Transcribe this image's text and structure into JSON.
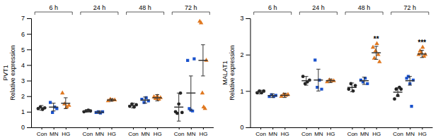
{
  "chart_data": [
    {
      "type": "dot",
      "title": "PVT1",
      "ylabel": "Relative expression",
      "ylim": [
        0,
        7
      ],
      "yticks": [
        0,
        1,
        2,
        3,
        4,
        5,
        6,
        7
      ],
      "grid": false,
      "categories": [
        "6 h",
        "24 h",
        "48 h",
        "72 h"
      ],
      "series": [
        {
          "name": "Con",
          "color": "#222222",
          "marker": "circle",
          "values": [
            1.25,
            1.05,
            1.4,
            1.3
          ],
          "errors": [
            0.15,
            0.07,
            0.15,
            0.9
          ],
          "points": [
            [
              1.2,
              1.3,
              1.15,
              1.25
            ],
            [
              1.0,
              1.05,
              1.1,
              1.05
            ],
            [
              1.35,
              1.5,
              1.3,
              1.45
            ],
            [
              1.0,
              0.9,
              1.5,
              2.2,
              0.95
            ]
          ]
        },
        {
          "name": "MN",
          "color": "#1a52cc",
          "marker": "square",
          "values": [
            1.3,
            0.97,
            1.75,
            2.2
          ],
          "errors": [
            0.25,
            0.08,
            0.2,
            1.1
          ],
          "points": [
            [
              1.6,
              0.95,
              1.3,
              1.2
            ],
            [
              0.95,
              1.0,
              0.92,
              1.0
            ],
            [
              1.8,
              1.6,
              1.9,
              1.7
            ],
            [
              4.3,
              1.2,
              1.1,
              1.05,
              4.4
            ]
          ]
        },
        {
          "name": "HG",
          "color": "#e07820",
          "marker": "triangle",
          "values": [
            1.55,
            1.75,
            1.9,
            4.3
          ],
          "errors": [
            0.35,
            0.08,
            0.2,
            1.0
          ],
          "points": [
            [
              2.2,
              1.5,
              1.3,
              1.4
            ],
            [
              1.7,
              1.8,
              1.75,
              1.75
            ],
            [
              1.95,
              1.85,
              2.0,
              1.8,
              1.9
            ],
            [
              6.8,
              6.7,
              2.2,
              1.3,
              1.2,
              4.3
            ]
          ]
        }
      ]
    },
    {
      "type": "dot",
      "title": "MALAT1",
      "ylabel": "Relative expression",
      "ylim": [
        0,
        3
      ],
      "yticks": [
        0,
        1,
        2,
        3
      ],
      "grid": false,
      "categories": [
        "6 h",
        "24 h",
        "48 h",
        "72 h"
      ],
      "series": [
        {
          "name": "Con",
          "color": "#222222",
          "marker": "circle",
          "values": [
            0.97,
            1.28,
            1.1,
            0.97
          ],
          "errors": [
            0.05,
            0.12,
            0.12,
            0.12
          ],
          "points": [
            [
              0.95,
              1.0,
              0.95,
              1.0
            ],
            [
              1.4,
              1.2,
              1.25,
              1.3
            ],
            [
              1.05,
              1.2,
              1.0,
              1.15
            ],
            [
              0.78,
              1.05,
              0.88,
              1.1,
              1.05
            ]
          ]
        },
        {
          "name": "MN",
          "color": "#1a52cc",
          "marker": "square",
          "values": [
            0.87,
            1.3,
            1.28,
            1.28
          ],
          "errors": [
            0.05,
            0.3,
            0.1,
            0.12
          ],
          "points": [
            [
              0.85,
              0.9,
              0.85,
              0.88
            ],
            [
              1.85,
              1.1,
              1.3,
              1.05
            ],
            [
              1.3,
              1.25,
              1.35,
              1.2
            ],
            [
              1.35,
              1.4,
              1.2,
              0.58,
              1.3
            ]
          ]
        },
        {
          "name": "HG",
          "color": "#e07820",
          "marker": "triangle",
          "values": [
            0.88,
            1.28,
            2.05,
            2.02
          ],
          "errors": [
            0.06,
            0.05,
            0.18,
            0.1
          ],
          "points": [
            [
              0.85,
              0.9,
              0.88,
              0.9
            ],
            [
              1.25,
              1.3,
              1.28,
              1.28
            ],
            [
              2.2,
              1.9,
              2.1,
              2.3,
              2.0,
              1.8
            ],
            [
              2.0,
              2.1,
              2.05,
              2.2,
              1.95,
              2.0
            ]
          ],
          "annotations": [
            null,
            null,
            "**",
            "***"
          ]
        }
      ]
    }
  ]
}
